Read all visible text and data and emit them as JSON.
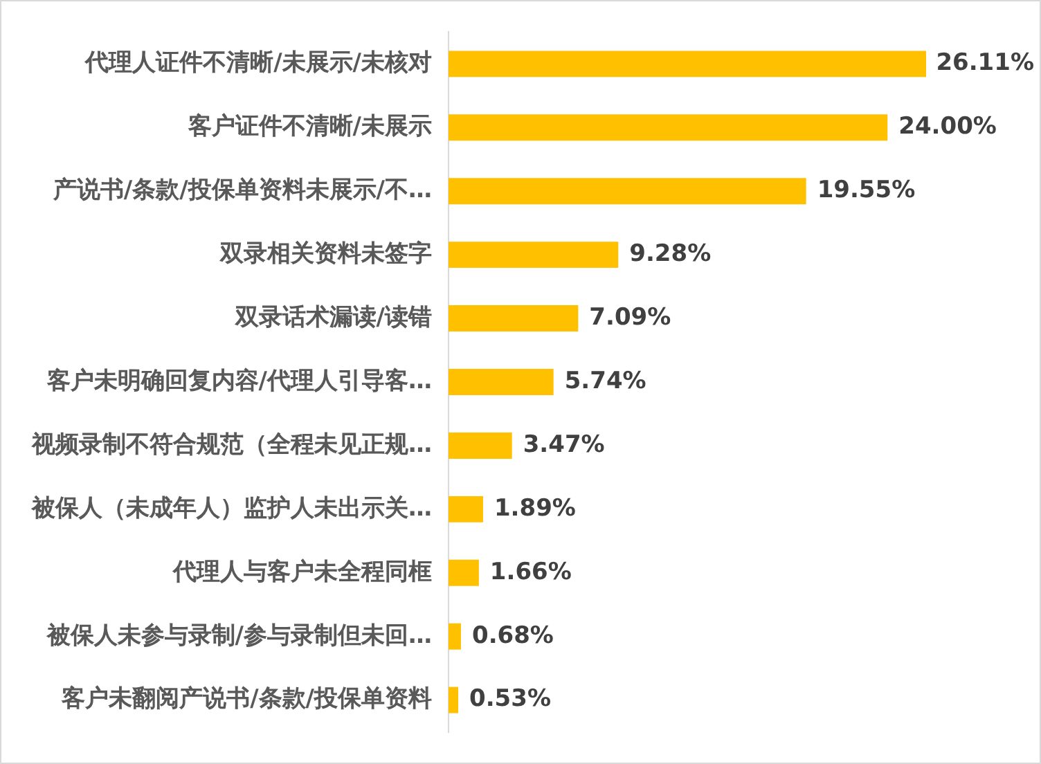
{
  "chart_data": {
    "type": "bar",
    "orientation": "horizontal",
    "categories": [
      "代理人证件不清晰/未展示/未核对",
      "客户证件不清晰/未展示",
      "产说书/条款/投保单资料未展示/不…",
      "双录相关资料未签字",
      "双录话术漏读/读错",
      "客户未明确回复内容/代理人引导客…",
      "视频录制不符合规范（全程未见正规…",
      "被保人（未成年人）监护人未出示关…",
      "代理人与客户未全程同框",
      "被保人未参与录制/参与录制但未回…",
      "客户未翻阅产说书/条款/投保单资料"
    ],
    "values": [
      26.11,
      24.0,
      19.55,
      9.28,
      7.09,
      5.74,
      3.47,
      1.89,
      1.66,
      0.68,
      0.53
    ],
    "value_labels": [
      "26.11%",
      "24.00%",
      "19.55%",
      "9.28%",
      "7.09%",
      "5.74%",
      "3.47%",
      "1.89%",
      "1.66%",
      "0.68%",
      "0.53%"
    ],
    "color": "#ffc000",
    "legend": false,
    "tick_labels": "y"
  }
}
